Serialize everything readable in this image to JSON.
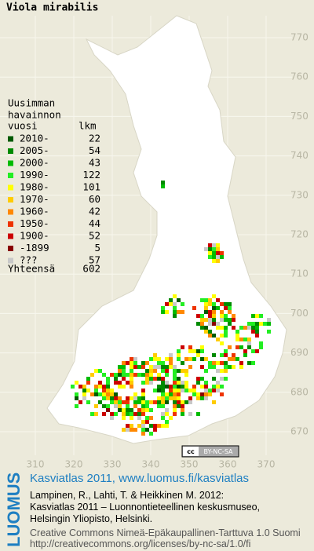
{
  "title": "Viola mirabilis",
  "legend": {
    "heading": [
      "Uusimman",
      "havainnon",
      "vuosi"
    ],
    "count_heading": "lkm",
    "rows": [
      {
        "label": "2010-",
        "count": 22,
        "color": "#005a00"
      },
      {
        "label": "2005-",
        "count": 54,
        "color": "#008a00"
      },
      {
        "label": "2000-",
        "count": 43,
        "color": "#00bb00"
      },
      {
        "label": "1990-",
        "count": 122,
        "color": "#22ee22"
      },
      {
        "label": "1980-",
        "count": 101,
        "color": "#ffff00"
      },
      {
        "label": "1970-",
        "count": 60,
        "color": "#ffcc00"
      },
      {
        "label": "1960-",
        "count": 42,
        "color": "#ff8800"
      },
      {
        "label": "1950-",
        "count": 44,
        "color": "#ee3300"
      },
      {
        "label": "1900-",
        "count": 52,
        "color": "#cc0000"
      },
      {
        "label": "-1899",
        "count": 5,
        "color": "#880000"
      },
      {
        "label": "???",
        "count": 57,
        "color": "#c8c8c8"
      }
    ],
    "total_label": "Yhteensä",
    "total": 602
  },
  "map": {
    "northing_labels": [
      770,
      760,
      750,
      740,
      730,
      720,
      710,
      700,
      690,
      680,
      670
    ],
    "easting_labels": [
      310,
      320,
      330,
      340,
      350,
      360,
      370
    ]
  },
  "badge": {
    "icon": "cc",
    "text": "BY-NC-SA"
  },
  "footer": {
    "logo": "LUOMUS",
    "link": "Kasviatlas 2011, www.luomus.fi/kasviatlas",
    "citation": [
      "Lampinen, R., Lahti, T. & Heikkinen M. 2012:",
      "Kasviatlas 2011 – Luonnontieteellinen keskusmuseo,",
      "Helsingin Yliopisto, Helsinki."
    ],
    "license": [
      "Creative Commons Nimeä-Epäkaupallinen-Tarttuva 1.0 Suomi",
      "http://creativecommons.org/licenses/by-nc-sa/1.0/fi"
    ]
  }
}
